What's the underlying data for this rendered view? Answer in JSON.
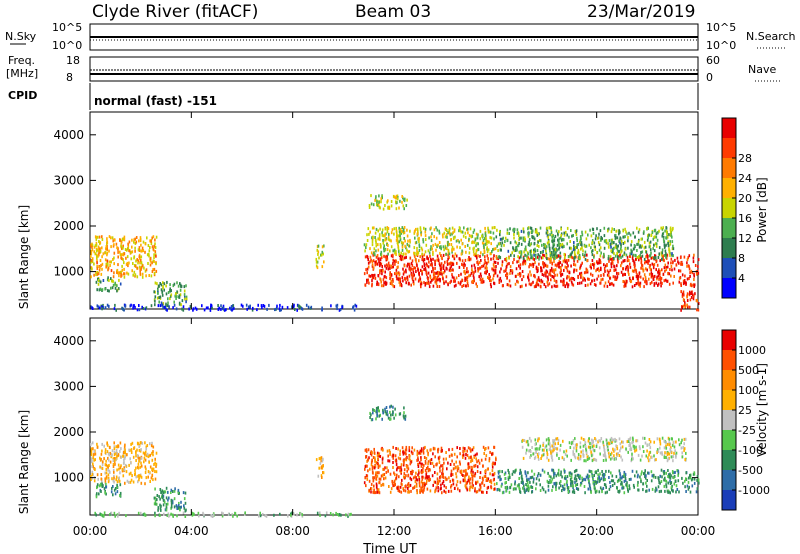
{
  "header": {
    "station": "Clyde River (fitACF)",
    "beam": "Beam 03",
    "date": "23/Mar/2019"
  },
  "strip_labels": {
    "nsky": "N.Sky",
    "freq_line1": "Freq.",
    "freq_line2": "[MHz]",
    "cpid": "CPID",
    "nsearch": "N.Search",
    "nave": "Nave",
    "cpid_value": "normal (fast) -151"
  },
  "strip_ticks": {
    "nsky_left": [
      "10^5",
      "10^0"
    ],
    "nsky_right": [
      "10^5",
      "10^0"
    ],
    "freq_left": [
      "18",
      "8"
    ],
    "nave_right": [
      "60",
      "0"
    ]
  },
  "x_axis": {
    "label": "Time UT",
    "ticks": [
      "00:00",
      "04:00",
      "08:00",
      "12:00",
      "16:00",
      "20:00",
      "00:00"
    ]
  },
  "y_axis": {
    "label": "Slant Range [km]",
    "ticks": [
      "1000",
      "2000",
      "3000",
      "4000"
    ]
  },
  "power_colorbar": {
    "label": "Power [dB]",
    "ticks": [
      "4",
      "8",
      "12",
      "16",
      "20",
      "24",
      "28"
    ],
    "colors": [
      "#0000ff",
      "#1e4fb8",
      "#2e7d4f",
      "#4caf50",
      "#c8d400",
      "#ffb000",
      "#ff7a00",
      "#ff3a00",
      "#e80000"
    ]
  },
  "velocity_colorbar": {
    "label": "Velocity [m s-1]",
    "ticks": [
      "1000",
      "500",
      "100",
      "25",
      "-25",
      "-100",
      "-500",
      "-1000"
    ],
    "colors": [
      "#1a3db8",
      "#2e6da8",
      "#2e8b57",
      "#57c84d",
      "#c0c0c0",
      "#ffb000",
      "#ff8c00",
      "#ff5000",
      "#e80000"
    ]
  },
  "chart_data": [
    {
      "type": "heatmap",
      "name": "Power",
      "x_range_hours": [
        0,
        24
      ],
      "y_range_km": [
        180,
        4500
      ],
      "colorbar_label": "Power [dB]",
      "scatter_regions": [
        {
          "t0": 0.0,
          "t1": 2.6,
          "r0": 900,
          "r1": 1800,
          "level": 20
        },
        {
          "t0": 0.2,
          "t1": 1.2,
          "r0": 600,
          "r1": 900,
          "level": 12
        },
        {
          "t0": 2.5,
          "t1": 3.8,
          "r0": 300,
          "r1": 800,
          "level": 12
        },
        {
          "t0": 0.0,
          "t1": 10.5,
          "r0": 180,
          "r1": 300,
          "level": 4
        },
        {
          "t0": 8.9,
          "t1": 9.2,
          "r0": 1100,
          "r1": 1600,
          "level": 16
        },
        {
          "t0": 10.8,
          "t1": 24.0,
          "r0": 700,
          "r1": 1400,
          "level": 28
        },
        {
          "t0": 10.8,
          "t1": 16.0,
          "r0": 1400,
          "r1": 2000,
          "level": 16
        },
        {
          "t0": 16.0,
          "t1": 23.0,
          "r0": 1300,
          "r1": 2000,
          "level": 12
        },
        {
          "t0": 11.0,
          "t1": 12.5,
          "r0": 2400,
          "r1": 2700,
          "level": 16
        },
        {
          "t0": 23.3,
          "t1": 24.0,
          "r0": 180,
          "r1": 600,
          "level": 28
        }
      ]
    },
    {
      "type": "heatmap",
      "name": "Velocity",
      "x_range_hours": [
        0,
        24
      ],
      "y_range_km": [
        180,
        4500
      ],
      "colorbar_label": "Velocity [m s-1]",
      "scatter_regions": [
        {
          "t0": 0.0,
          "t1": 2.6,
          "r0": 900,
          "r1": 1800,
          "level": -100
        },
        {
          "t0": 0.2,
          "t1": 1.2,
          "r0": 600,
          "r1": 900,
          "level": 100
        },
        {
          "t0": 2.5,
          "t1": 3.8,
          "r0": 300,
          "r1": 800,
          "level": 100
        },
        {
          "t0": 0.0,
          "t1": 10.5,
          "r0": 180,
          "r1": 260,
          "level": 25
        },
        {
          "t0": 8.9,
          "t1": 9.2,
          "r0": 1000,
          "r1": 1500,
          "level": -100
        },
        {
          "t0": 10.8,
          "t1": 16.0,
          "r0": 700,
          "r1": 1700,
          "level": -500
        },
        {
          "t0": 16.0,
          "t1": 24.0,
          "r0": 700,
          "r1": 1200,
          "level": 100
        },
        {
          "t0": 17.0,
          "t1": 23.5,
          "r0": 1400,
          "r1": 1900,
          "level": 0
        },
        {
          "t0": 11.0,
          "t1": 12.5,
          "r0": 2300,
          "r1": 2600,
          "level": 100
        }
      ]
    }
  ]
}
